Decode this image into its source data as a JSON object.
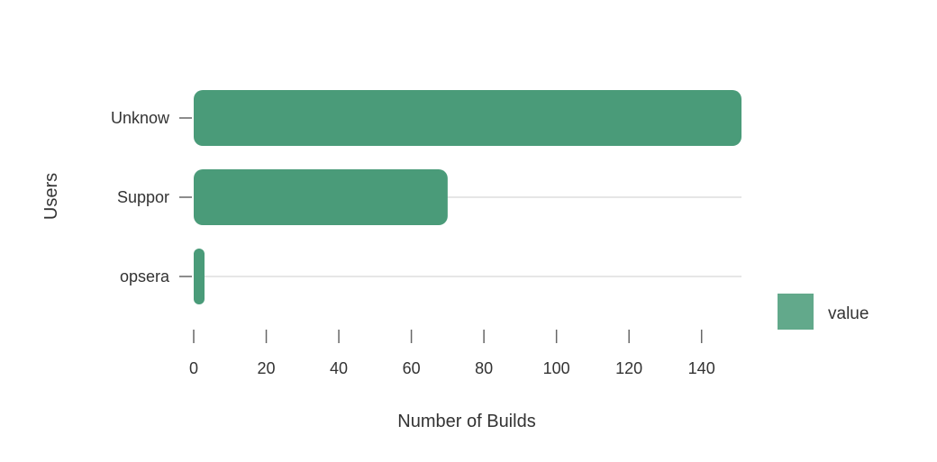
{
  "chart_data": {
    "type": "bar",
    "orientation": "horizontal",
    "categories": [
      "Unknow",
      "Suppor",
      "opsera"
    ],
    "values": [
      151,
      70,
      2
    ],
    "xlabel": "Number of Builds",
    "ylabel": "Users",
    "xticks": [
      0,
      20,
      40,
      60,
      80,
      100,
      120,
      140
    ],
    "xlim": [
      0,
      151
    ],
    "grid": "horizontal",
    "legend": {
      "position": "right",
      "entries": [
        "value"
      ]
    },
    "colors": {
      "bar": "#4a9b79",
      "legend": "#62a98b",
      "grid": "#dddddd",
      "axis": "#666666"
    }
  }
}
